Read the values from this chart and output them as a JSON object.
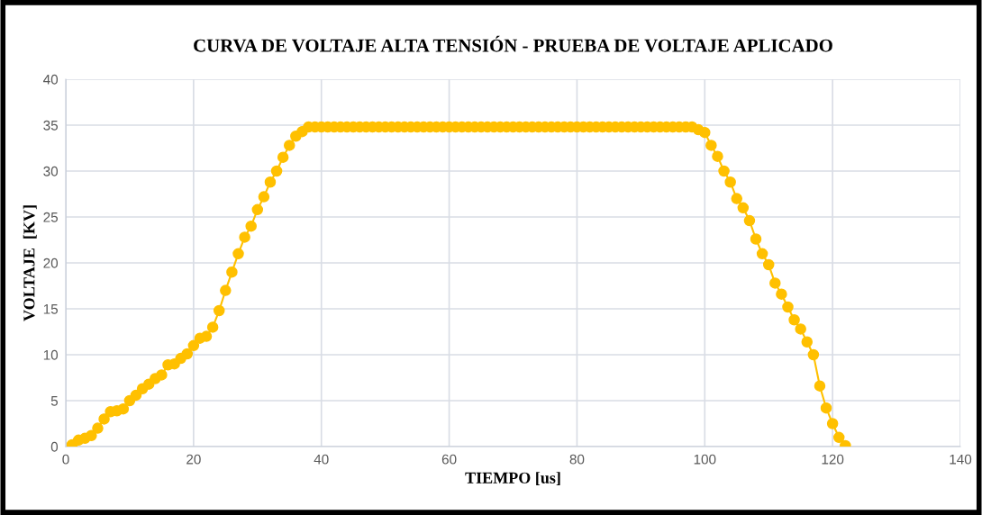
{
  "chart_data": {
    "type": "line",
    "title": "CURVA DE VOLTAJE ALTA TENSIÓN - PRUEBA DE VOLTAJE APLICADO",
    "xlabel": "TIEMPO [us]",
    "ylabel": "VOLTAJE  [KV]",
    "x": [
      1,
      2,
      3,
      4,
      5,
      6,
      7,
      8,
      9,
      10,
      11,
      12,
      13,
      14,
      15,
      16,
      17,
      18,
      19,
      20,
      21,
      22,
      23,
      24,
      25,
      26,
      27,
      28,
      29,
      30,
      31,
      32,
      33,
      34,
      35,
      36,
      37,
      38,
      39,
      40,
      41,
      42,
      43,
      44,
      45,
      46,
      47,
      48,
      49,
      50,
      51,
      52,
      53,
      54,
      55,
      56,
      57,
      58,
      59,
      60,
      61,
      62,
      63,
      64,
      65,
      66,
      67,
      68,
      69,
      70,
      71,
      72,
      73,
      74,
      75,
      76,
      77,
      78,
      79,
      80,
      81,
      82,
      83,
      84,
      85,
      86,
      87,
      88,
      89,
      90,
      91,
      92,
      93,
      94,
      95,
      96,
      97,
      98,
      99,
      100,
      101,
      102,
      103,
      104,
      105,
      106,
      107,
      108,
      109,
      110,
      111,
      112,
      113,
      114,
      115,
      116,
      117,
      118,
      119,
      120,
      121,
      122
    ],
    "series": [
      {
        "color": "#ffc000",
        "values": [
          0.2,
          0.7,
          0.9,
          1.2,
          2.0,
          3.0,
          3.8,
          3.9,
          4.1,
          5.0,
          5.6,
          6.3,
          6.8,
          7.4,
          7.8,
          8.9,
          9.0,
          9.6,
          10.1,
          11.0,
          11.8,
          12.0,
          13.0,
          14.8,
          17.0,
          19.0,
          21.0,
          22.8,
          24.0,
          25.8,
          27.2,
          28.8,
          30.0,
          31.5,
          32.8,
          33.8,
          34.3,
          34.8,
          34.8,
          34.8,
          34.8,
          34.8,
          34.8,
          34.8,
          34.8,
          34.8,
          34.8,
          34.8,
          34.8,
          34.8,
          34.8,
          34.8,
          34.8,
          34.8,
          34.8,
          34.8,
          34.8,
          34.8,
          34.8,
          34.8,
          34.8,
          34.8,
          34.8,
          34.8,
          34.8,
          34.8,
          34.8,
          34.8,
          34.8,
          34.8,
          34.8,
          34.8,
          34.8,
          34.8,
          34.8,
          34.8,
          34.8,
          34.8,
          34.8,
          34.8,
          34.8,
          34.8,
          34.8,
          34.8,
          34.8,
          34.8,
          34.8,
          34.8,
          34.8,
          34.8,
          34.8,
          34.8,
          34.8,
          34.8,
          34.8,
          34.8,
          34.8,
          34.8,
          34.5,
          34.2,
          32.8,
          31.6,
          30.0,
          28.8,
          27.0,
          26.0,
          24.6,
          22.6,
          21.0,
          19.8,
          17.8,
          16.6,
          15.2,
          13.8,
          12.8,
          11.4,
          10.0,
          6.6,
          4.2,
          2.5,
          1.0,
          0.1
        ]
      }
    ],
    "xlim": [
      0,
      140
    ],
    "xticks": [
      0,
      20,
      40,
      60,
      80,
      100,
      120,
      140
    ],
    "ylim": [
      0,
      40
    ],
    "yticks": [
      0,
      5,
      10,
      15,
      20,
      25,
      30,
      35,
      40
    ],
    "grid": true,
    "marker": "circle",
    "line_style": "solid"
  }
}
